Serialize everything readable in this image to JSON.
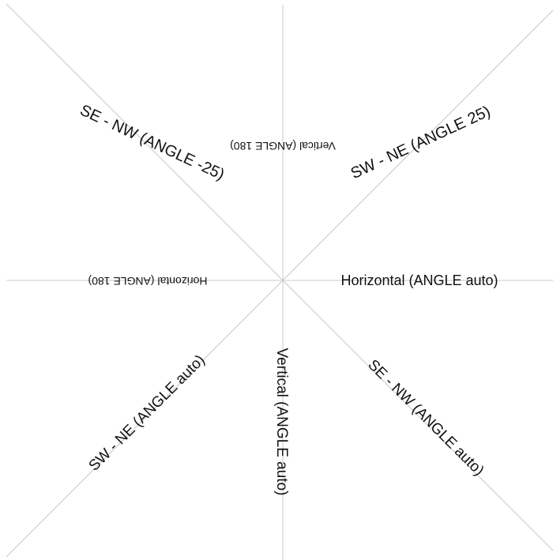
{
  "labels": {
    "se_nw_neg25": "SE - NW (ANGLE -25)",
    "vertical_180": "Vertical (ANGLE 180)",
    "sw_ne_25": "SW - NE (ANGLE 25)",
    "horizontal_180": "Horizontal (ANGLE 180)",
    "horizontal_auto": "Horizontal (ANGLE auto)",
    "sw_ne_auto": "SW - NE (ANGLE auto)",
    "vertical_auto": "Vertical (ANGLE auto)",
    "se_nw_auto": "SE - NW (ANGLE auto)"
  },
  "colors": {
    "guide_line": "#c8c8c8",
    "text": "#111111",
    "background": "#ffffff"
  }
}
